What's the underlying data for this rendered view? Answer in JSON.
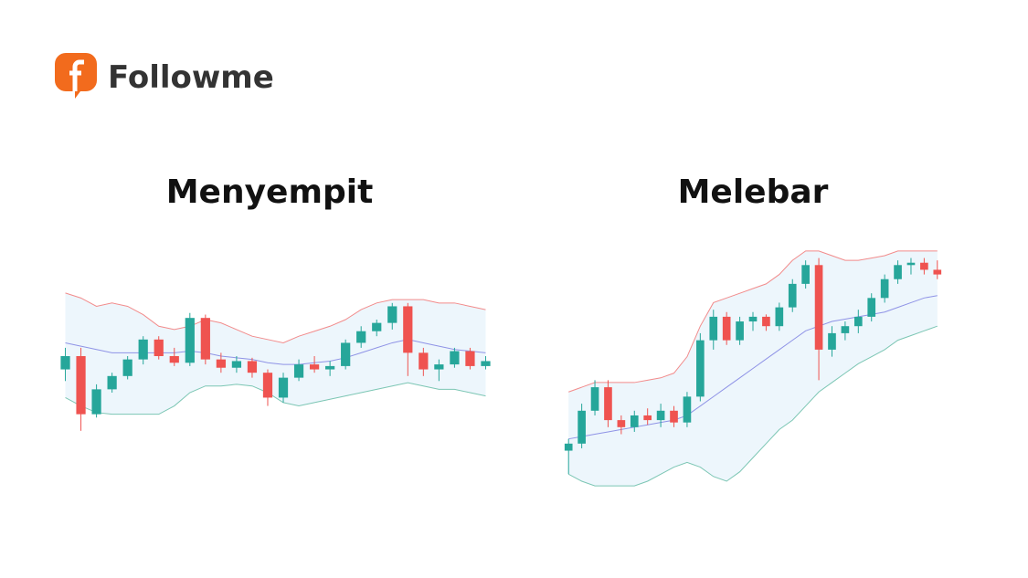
{
  "logo": "Followme",
  "chart_data": [
    {
      "type": "candlestick",
      "title": "Menyempit",
      "ylim": [
        -5,
        105
      ],
      "up_color": "#26a69a",
      "down_color": "#ef5350",
      "open": [
        42,
        50,
        15,
        30,
        38,
        48,
        60,
        50,
        46,
        73,
        48,
        43,
        47,
        40,
        25,
        37,
        45,
        42,
        44,
        58,
        65,
        70,
        80,
        52,
        42,
        45,
        53,
        44
      ],
      "high": [
        55,
        55,
        33,
        40,
        50,
        62,
        62,
        55,
        76,
        75,
        52,
        50,
        49,
        42,
        40,
        48,
        50,
        47,
        60,
        68,
        72,
        82,
        82,
        55,
        48,
        55,
        55,
        50
      ],
      "low": [
        35,
        5,
        13,
        28,
        36,
        45,
        48,
        44,
        44,
        45,
        40,
        40,
        37,
        20,
        22,
        35,
        40,
        38,
        42,
        55,
        62,
        66,
        38,
        38,
        35,
        43,
        42,
        42
      ],
      "close": [
        50,
        15,
        30,
        38,
        48,
        60,
        50,
        46,
        73,
        48,
        43,
        47,
        40,
        25,
        37,
        45,
        42,
        44,
        58,
        65,
        70,
        80,
        52,
        42,
        45,
        53,
        44,
        47
      ],
      "bands": [
        {
          "color": "#f28b8b",
          "values": [
            88,
            85,
            80,
            82,
            80,
            75,
            68,
            66,
            68,
            72,
            70,
            66,
            62,
            60,
            58,
            62,
            65,
            68,
            72,
            78,
            82,
            84,
            84,
            84,
            82,
            82,
            80,
            78
          ]
        },
        {
          "color": "#8f93e6",
          "values": [
            58,
            56,
            54,
            52,
            52,
            52,
            52,
            52,
            53,
            52,
            50,
            49,
            48,
            46,
            45,
            45,
            46,
            47,
            49,
            52,
            55,
            58,
            60,
            58,
            56,
            54,
            53,
            52
          ]
        },
        {
          "color": "#7cc6b4",
          "values": [
            25,
            20,
            16,
            15,
            15,
            15,
            15,
            20,
            28,
            32,
            32,
            33,
            32,
            28,
            22,
            20,
            22,
            24,
            26,
            28,
            30,
            32,
            34,
            32,
            30,
            30,
            28,
            26
          ]
        }
      ]
    },
    {
      "type": "candlestick",
      "title": "Melebar",
      "ylim": [
        -5,
        105
      ],
      "up_color": "#26a69a",
      "down_color": "#ef5350",
      "open": [
        15,
        18,
        32,
        42,
        28,
        25,
        30,
        28,
        32,
        27,
        38,
        62,
        72,
        62,
        70,
        72,
        68,
        76,
        86,
        94,
        58,
        65,
        68,
        72,
        80,
        88,
        94,
        95,
        92
      ],
      "high": [
        20,
        35,
        45,
        45,
        30,
        32,
        33,
        35,
        34,
        40,
        65,
        75,
        74,
        72,
        74,
        73,
        78,
        88,
        96,
        97,
        68,
        70,
        75,
        82,
        90,
        96,
        97,
        97,
        96
      ],
      "low": [
        5,
        16,
        30,
        25,
        22,
        23,
        26,
        25,
        25,
        25,
        36,
        58,
        60,
        60,
        66,
        66,
        66,
        74,
        84,
        45,
        55,
        62,
        65,
        70,
        78,
        86,
        90,
        90,
        88
      ],
      "close": [
        18,
        32,
        42,
        28,
        25,
        30,
        28,
        32,
        27,
        38,
        62,
        72,
        62,
        70,
        72,
        68,
        76,
        86,
        94,
        58,
        65,
        68,
        72,
        80,
        88,
        94,
        95,
        92,
        90
      ],
      "bands": [
        {
          "color": "#f28b8b",
          "values": [
            40,
            42,
            44,
            44,
            44,
            44,
            45,
            46,
            48,
            55,
            68,
            78,
            80,
            82,
            84,
            86,
            90,
            96,
            100,
            100,
            98,
            96,
            96,
            97,
            98,
            100,
            100,
            100,
            100
          ]
        },
        {
          "color": "#8f93e6",
          "values": [
            20,
            21,
            22,
            23,
            24,
            25,
            26,
            27,
            28,
            30,
            34,
            38,
            42,
            46,
            50,
            54,
            58,
            62,
            66,
            68,
            70,
            71,
            72,
            73,
            74,
            76,
            78,
            80,
            81
          ]
        },
        {
          "color": "#7cc6b4",
          "values": [
            5,
            2,
            0,
            0,
            0,
            0,
            2,
            5,
            8,
            10,
            8,
            4,
            2,
            6,
            12,
            18,
            24,
            28,
            34,
            40,
            44,
            48,
            52,
            55,
            58,
            62,
            64,
            66,
            68
          ]
        }
      ]
    }
  ]
}
